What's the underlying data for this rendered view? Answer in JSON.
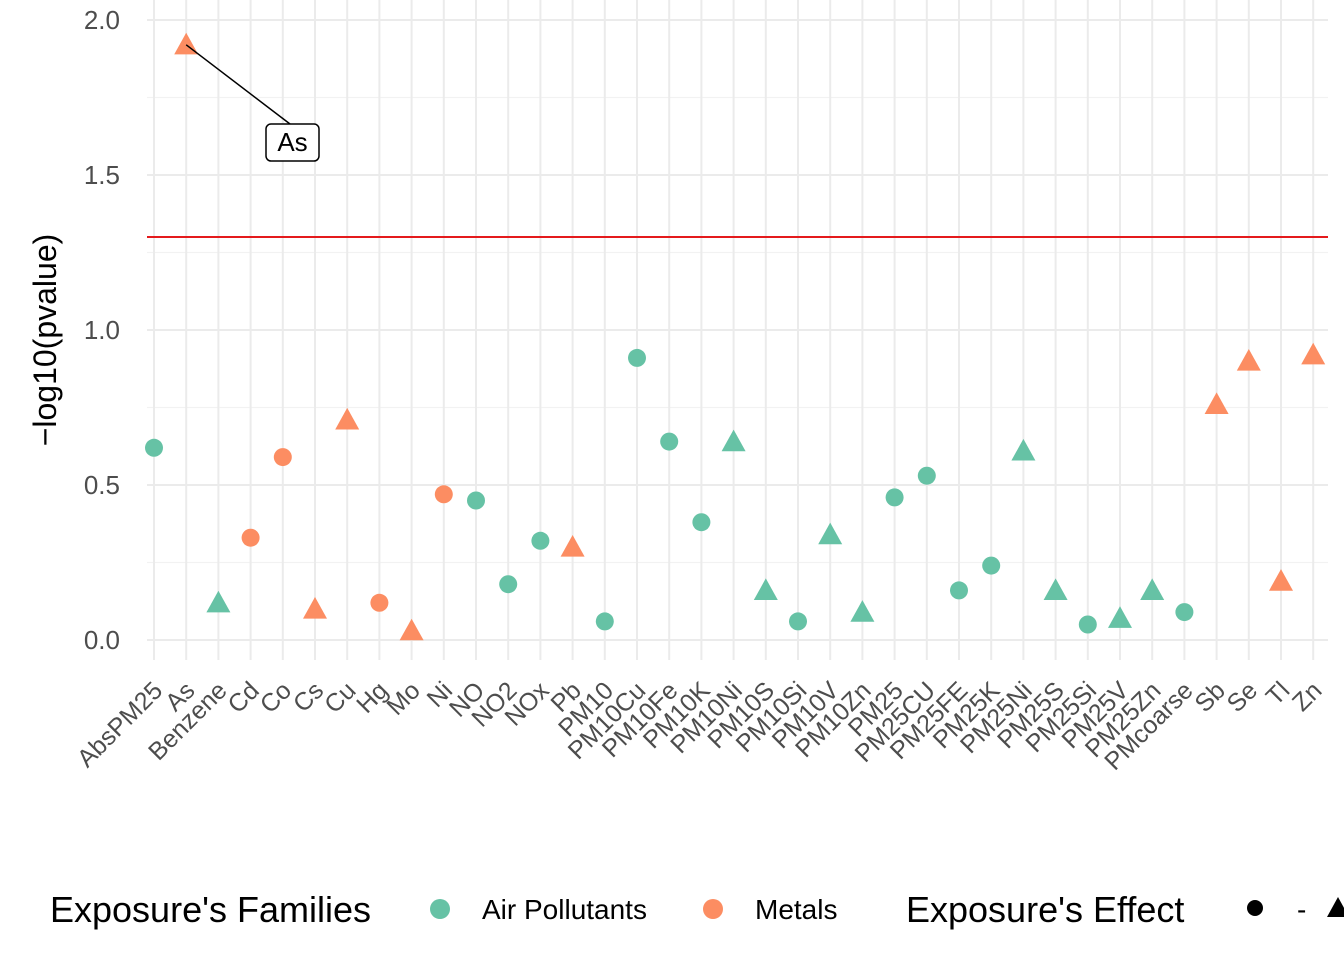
{
  "chart_data": {
    "type": "scatter",
    "ylabel": "−log10(pvalue)",
    "xlabel": "",
    "ylim": [
      0,
      2
    ],
    "yticks": [
      "0.0",
      "0.5",
      "1.0",
      "1.5",
      "2.0"
    ],
    "threshold": 1.3,
    "threshold_color": "#E41A1C",
    "colors": {
      "Air Pollutants": "#66C2A5",
      "Metals": "#FC8D62"
    },
    "categories": [
      "AbsPM25",
      "As",
      "Benzene",
      "Cd",
      "Co",
      "Cs",
      "Cu",
      "Hg",
      "Mo",
      "Ni",
      "NO",
      "NO2",
      "NOx",
      "Pb",
      "PM10",
      "PM10Cu",
      "PM10Fe",
      "PM10K",
      "PM10Ni",
      "PM10S",
      "PM10Si",
      "PM10V",
      "PM10Zn",
      "PM25",
      "PM25CU",
      "PM25FE",
      "PM25K",
      "PM25Ni",
      "PM25S",
      "PM25Si",
      "PM25V",
      "PM25Zn",
      "PMcoarse",
      "Sb",
      "Se",
      "Tl",
      "Zn"
    ],
    "points": [
      {
        "label": "AbsPM25",
        "value": 0.62,
        "family": "Air Pollutants",
        "effect": "-"
      },
      {
        "label": "As",
        "value": 1.92,
        "family": "Metals",
        "effect": "+"
      },
      {
        "label": "Benzene",
        "value": 0.12,
        "family": "Air Pollutants",
        "effect": "+"
      },
      {
        "label": "Cd",
        "value": 0.33,
        "family": "Metals",
        "effect": "-"
      },
      {
        "label": "Co",
        "value": 0.59,
        "family": "Metals",
        "effect": "-"
      },
      {
        "label": "Cs",
        "value": 0.1,
        "family": "Metals",
        "effect": "+"
      },
      {
        "label": "Cu",
        "value": 0.71,
        "family": "Metals",
        "effect": "+"
      },
      {
        "label": "Hg",
        "value": 0.12,
        "family": "Metals",
        "effect": "-"
      },
      {
        "label": "Mo",
        "value": 0.03,
        "family": "Metals",
        "effect": "+"
      },
      {
        "label": "Ni",
        "value": 0.47,
        "family": "Metals",
        "effect": "-"
      },
      {
        "label": "NO",
        "value": 0.45,
        "family": "Air Pollutants",
        "effect": "-"
      },
      {
        "label": "NO2",
        "value": 0.18,
        "family": "Air Pollutants",
        "effect": "-"
      },
      {
        "label": "NOx",
        "value": 0.32,
        "family": "Air Pollutants",
        "effect": "-"
      },
      {
        "label": "Pb",
        "value": 0.3,
        "family": "Metals",
        "effect": "+"
      },
      {
        "label": "PM10",
        "value": 0.06,
        "family": "Air Pollutants",
        "effect": "-"
      },
      {
        "label": "PM10Cu",
        "value": 0.91,
        "family": "Air Pollutants",
        "effect": "-"
      },
      {
        "label": "PM10Fe",
        "value": 0.64,
        "family": "Air Pollutants",
        "effect": "-"
      },
      {
        "label": "PM10K",
        "value": 0.38,
        "family": "Air Pollutants",
        "effect": "-"
      },
      {
        "label": "PM10Ni",
        "value": 0.64,
        "family": "Air Pollutants",
        "effect": "+"
      },
      {
        "label": "PM10S",
        "value": 0.16,
        "family": "Air Pollutants",
        "effect": "+"
      },
      {
        "label": "PM10Si",
        "value": 0.06,
        "family": "Air Pollutants",
        "effect": "-"
      },
      {
        "label": "PM10V",
        "value": 0.34,
        "family": "Air Pollutants",
        "effect": "+"
      },
      {
        "label": "PM10Zn",
        "value": 0.09,
        "family": "Air Pollutants",
        "effect": "+"
      },
      {
        "label": "PM25",
        "value": 0.46,
        "family": "Air Pollutants",
        "effect": "-"
      },
      {
        "label": "PM25CU",
        "value": 0.53,
        "family": "Air Pollutants",
        "effect": "-"
      },
      {
        "label": "PM25FE",
        "value": 0.16,
        "family": "Air Pollutants",
        "effect": "-"
      },
      {
        "label": "PM25K",
        "value": 0.24,
        "family": "Air Pollutants",
        "effect": "-"
      },
      {
        "label": "PM25Ni",
        "value": 0.61,
        "family": "Air Pollutants",
        "effect": "+"
      },
      {
        "label": "PM25S",
        "value": 0.16,
        "family": "Air Pollutants",
        "effect": "+"
      },
      {
        "label": "PM25Si",
        "value": 0.05,
        "family": "Air Pollutants",
        "effect": "-"
      },
      {
        "label": "PM25V",
        "value": 0.07,
        "family": "Air Pollutants",
        "effect": "+"
      },
      {
        "label": "PM25Zn",
        "value": 0.16,
        "family": "Air Pollutants",
        "effect": "+"
      },
      {
        "label": "PMcoarse",
        "value": 0.09,
        "family": "Air Pollutants",
        "effect": "-"
      },
      {
        "label": "Sb",
        "value": 0.76,
        "family": "Metals",
        "effect": "+"
      },
      {
        "label": "Se",
        "value": 0.9,
        "family": "Metals",
        "effect": "+"
      },
      {
        "label": "Tl",
        "value": 0.19,
        "family": "Metals",
        "effect": "+"
      },
      {
        "label": "Zn",
        "value": 0.92,
        "family": "Metals",
        "effect": "+"
      }
    ],
    "annotation": {
      "label": "As",
      "target": "As"
    }
  },
  "legend": {
    "families_title": "Exposure's Families",
    "families": [
      {
        "name": "Air Pollutants",
        "color": "#66C2A5"
      },
      {
        "name": "Metals",
        "color": "#FC8D62"
      }
    ],
    "effect_title": "Exposure's Effect",
    "effects": [
      {
        "name": "-",
        "shape": "circle"
      },
      {
        "name": "+",
        "shape": "triangle"
      }
    ]
  }
}
